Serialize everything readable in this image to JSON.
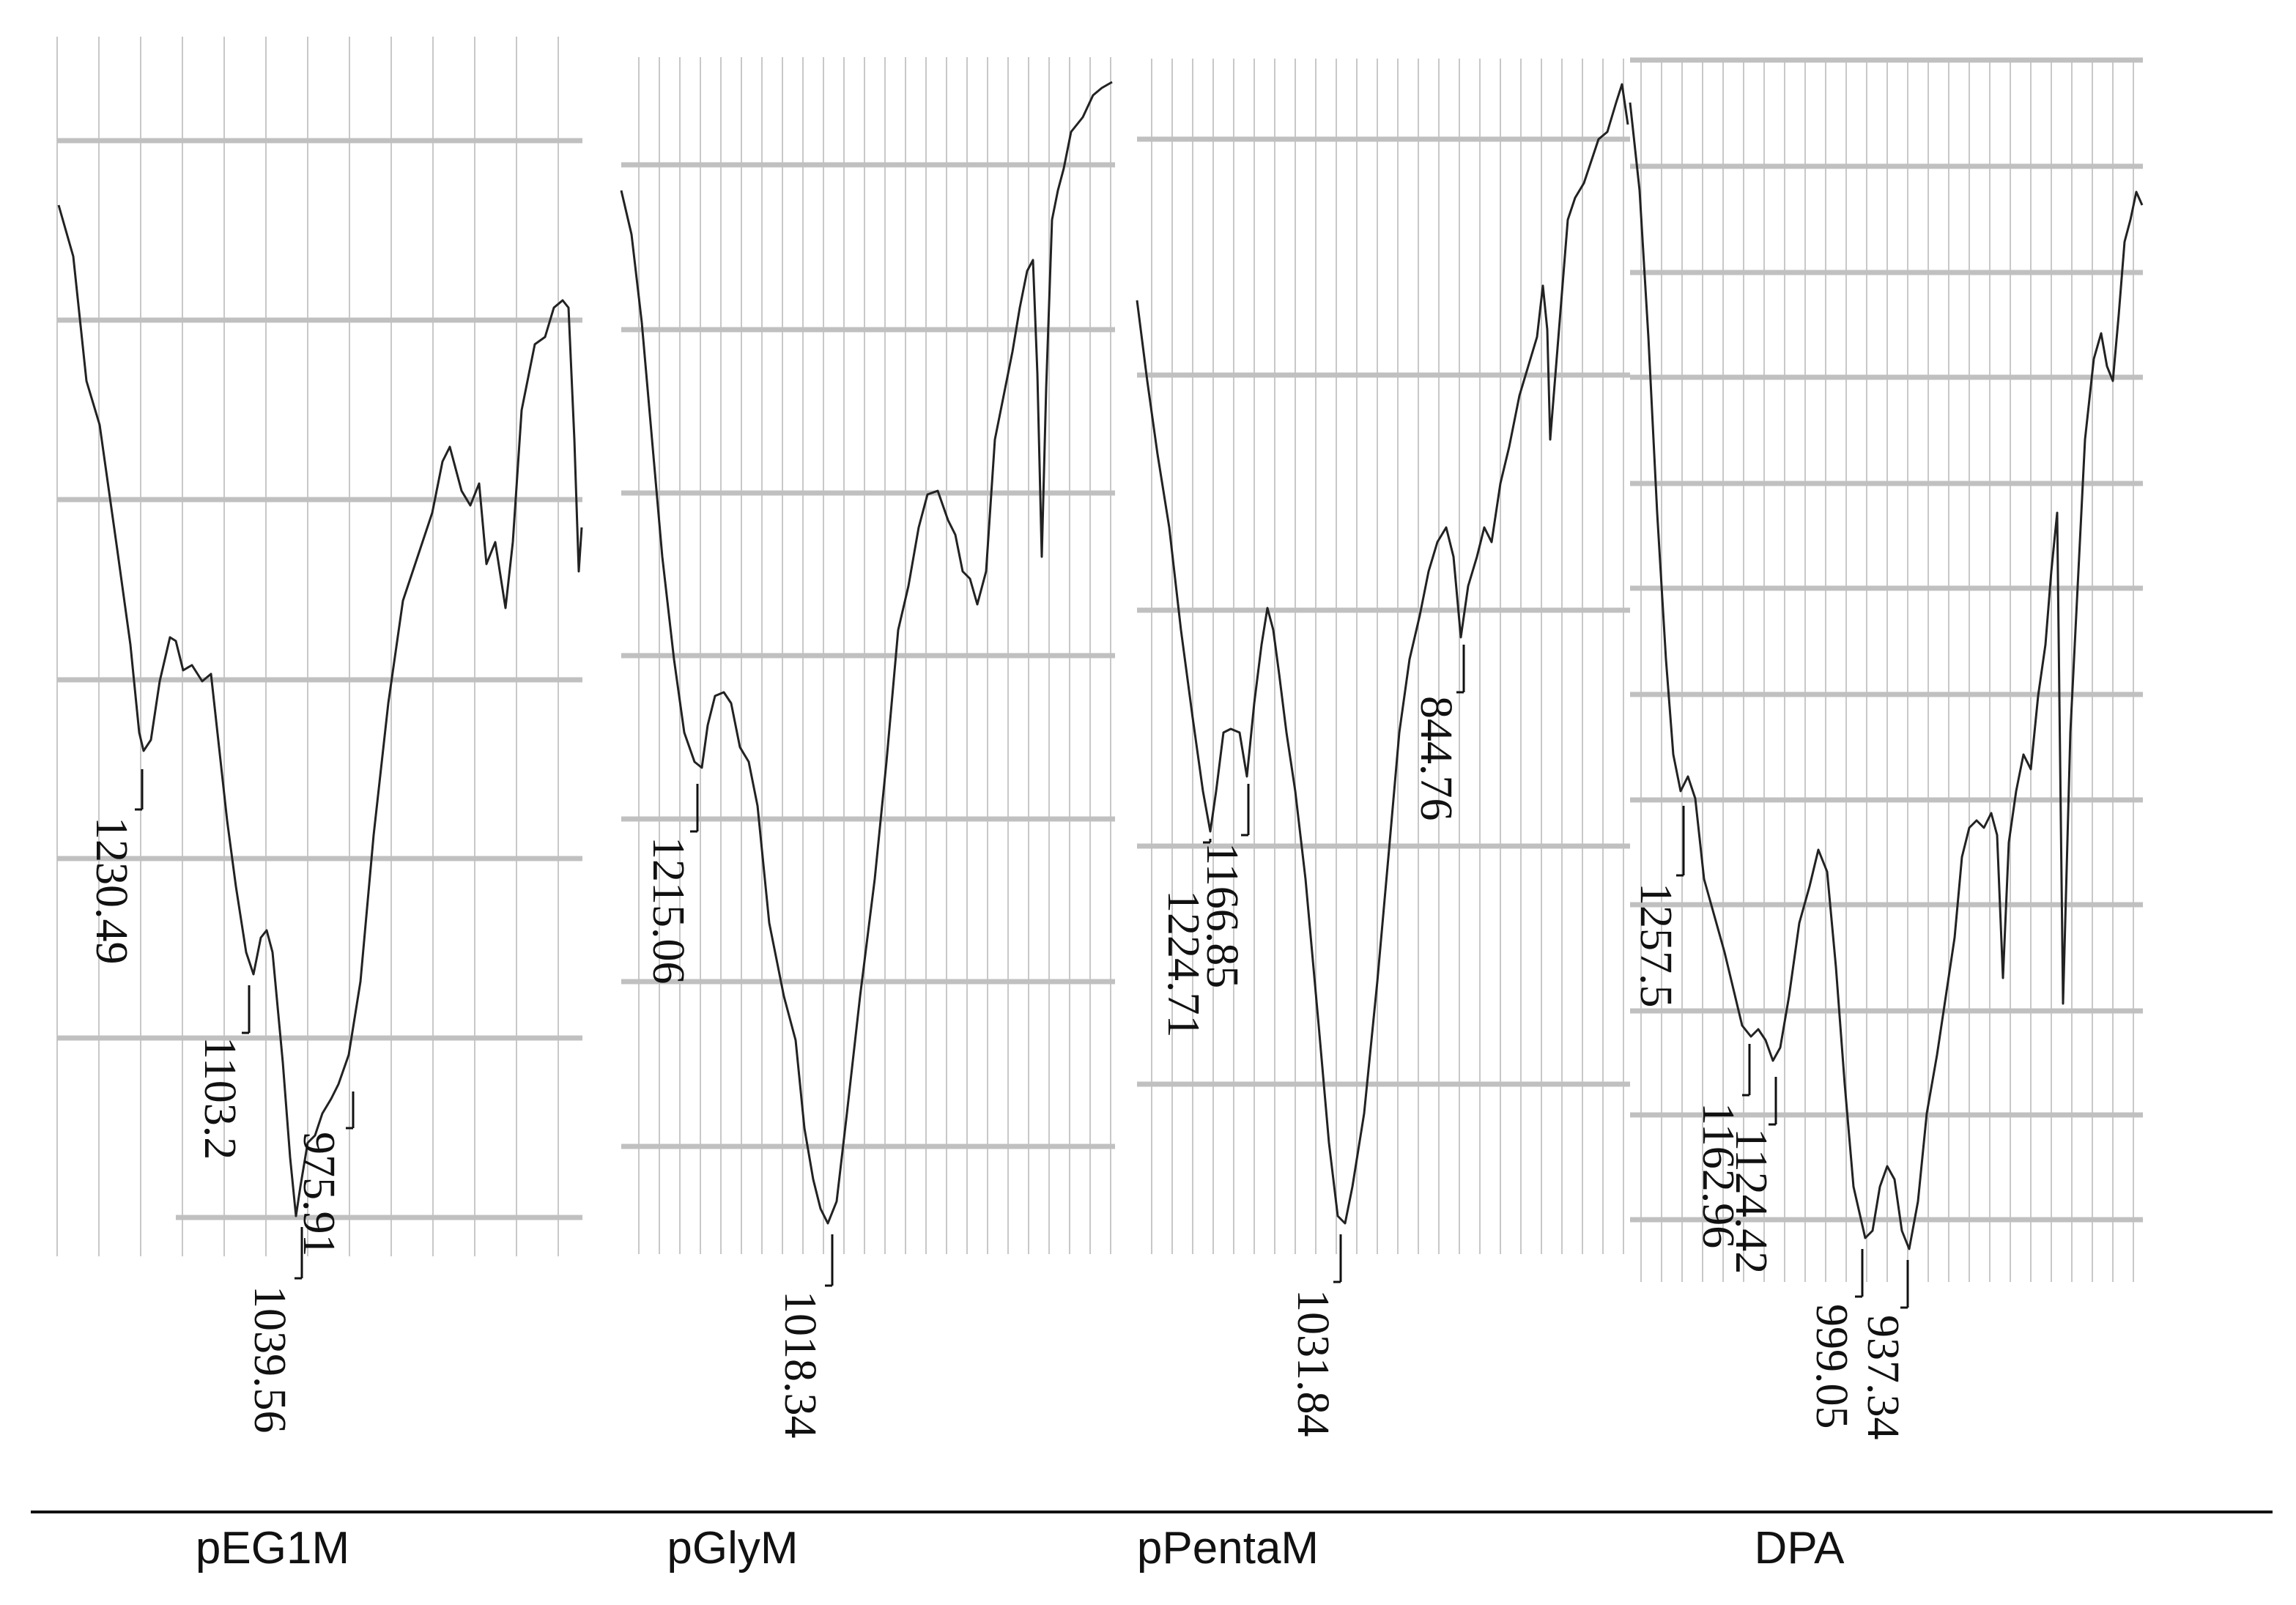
{
  "chart_data": {
    "type": "line",
    "panels": [
      {
        "name": "pEG1M",
        "peaks": [
          "1230.49",
          "1103.2",
          "1039.56",
          "975.91"
        ]
      },
      {
        "name": "pGlyM",
        "peaks": [
          "1215.06",
          "1018.34"
        ]
      },
      {
        "name": "pPentaM",
        "peaks": [
          "1166.85",
          "1224.71",
          "1031.84",
          "844.76"
        ]
      },
      {
        "name": "DPA",
        "peaks": [
          "1257.5",
          "1162.96",
          "1124.42",
          "999.05",
          "937.34"
        ]
      }
    ],
    "grid": true,
    "trace_color": "#222222",
    "grid_color": "#c0c0c0"
  }
}
